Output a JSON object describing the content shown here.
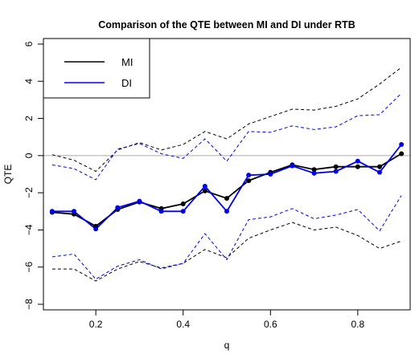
{
  "chart_data": {
    "type": "line",
    "title": "Comparison of the QTE between MI and DI under RTB",
    "xlabel": "q",
    "ylabel": "QTE",
    "xlim": [
      0.08,
      0.92
    ],
    "ylim": [
      -8.3,
      6.3
    ],
    "xticks": [
      0.2,
      0.4,
      0.6,
      0.8
    ],
    "xtick_labels": [
      "0.2",
      "0.4",
      "0.6",
      "0.8"
    ],
    "yticks": [
      -8,
      -6,
      -4,
      -2,
      0,
      2,
      4,
      6
    ],
    "ytick_labels": [
      "−8",
      "−6",
      "−4",
      "−2",
      "0",
      "2",
      "4",
      "6"
    ],
    "reference_line": 0,
    "reference_color": "#aaaaaa",
    "grid": false,
    "legend_position": "top-left",
    "x": [
      0.1,
      0.15,
      0.2,
      0.25,
      0.3,
      0.35,
      0.4,
      0.45,
      0.5,
      0.55,
      0.6,
      0.65,
      0.7,
      0.75,
      0.8,
      0.85,
      0.9
    ],
    "series": [
      {
        "name": "MI",
        "color": "#000000",
        "values": [
          -3.05,
          -3.15,
          -3.8,
          -2.9,
          -2.5,
          -2.85,
          -2.6,
          -1.9,
          -2.3,
          -1.35,
          -0.9,
          -0.5,
          -0.75,
          -0.6,
          -0.6,
          -0.6,
          0.1
        ],
        "upper": [
          0.05,
          -0.25,
          -0.85,
          0.3,
          0.7,
          0.3,
          0.6,
          1.3,
          0.9,
          1.7,
          2.1,
          2.5,
          2.45,
          2.65,
          3.05,
          3.85,
          4.75
        ],
        "lower": [
          -6.1,
          -6.1,
          -6.75,
          -6.1,
          -5.7,
          -6.05,
          -5.8,
          -5.05,
          -5.5,
          -4.45,
          -4.0,
          -3.6,
          -4.0,
          -3.85,
          -4.3,
          -5.0,
          -4.6
        ]
      },
      {
        "name": "DI",
        "color": "#0000ee",
        "values": [
          -3.0,
          -3.0,
          -3.95,
          -2.8,
          -2.45,
          -3.0,
          -3.0,
          -1.65,
          -3.0,
          -1.05,
          -1.0,
          -0.55,
          -0.95,
          -0.85,
          -0.3,
          -0.9,
          0.6
        ],
        "upper": [
          -0.5,
          -0.7,
          -1.3,
          0.35,
          0.65,
          0.1,
          -0.15,
          0.9,
          -0.3,
          1.3,
          1.25,
          1.6,
          1.4,
          1.55,
          2.15,
          2.2,
          3.35
        ],
        "lower": [
          -5.45,
          -5.3,
          -6.65,
          -5.95,
          -5.6,
          -6.1,
          -5.8,
          -4.2,
          -5.6,
          -3.45,
          -3.3,
          -2.85,
          -3.4,
          -3.2,
          -2.9,
          -4.05,
          -2.15
        ]
      }
    ]
  }
}
